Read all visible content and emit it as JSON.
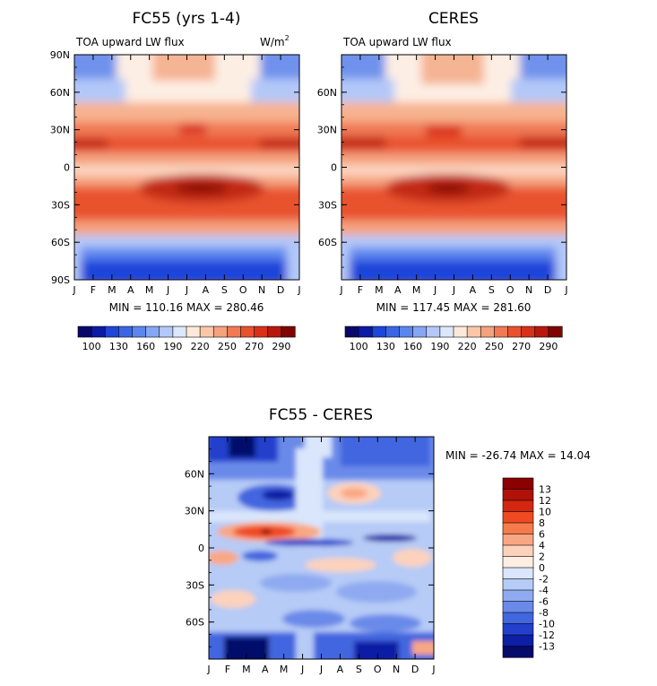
{
  "chart_data": [
    {
      "type": "heatmap",
      "title": "FC55 (yrs 1-4)",
      "subtitle": "TOA upward LW flux",
      "units_base": "W/m",
      "units_exp": "2",
      "x_labels": [
        "J",
        "F",
        "M",
        "A",
        "M",
        "J",
        "J",
        "A",
        "S",
        "O",
        "N",
        "D",
        "J"
      ],
      "y_labels": [
        "90N",
        "60N",
        "30N",
        "0",
        "30S",
        "60S",
        "90S"
      ],
      "y_values": [
        90,
        60,
        30,
        0,
        -30,
        -60,
        -90
      ],
      "stats": "MIN = 110.16 MAX = 280.46",
      "colorbar": {
        "ticks": [
          "100",
          "130",
          "160",
          "190",
          "220",
          "250",
          "270",
          "290"
        ],
        "levels": [
          100,
          130,
          160,
          190,
          220,
          250,
          270,
          290
        ],
        "colors": [
          "#08086b",
          "#0d1aa6",
          "#1f45d9",
          "#3a66e6",
          "#5b86ee",
          "#86a6f3",
          "#b3c8f8",
          "#dce7fb",
          "#fde9d9",
          "#f9c7a8",
          "#f5a27e",
          "#f07a55",
          "#e8522f",
          "#d9301a",
          "#b8170e",
          "#7e0504"
        ]
      }
    },
    {
      "type": "heatmap",
      "title": "CERES",
      "subtitle": "TOA upward LW flux",
      "x_labels": [
        "J",
        "F",
        "M",
        "A",
        "M",
        "J",
        "J",
        "A",
        "S",
        "O",
        "N",
        "D",
        "J"
      ],
      "y_labels": [
        "60N",
        "30N",
        "0",
        "30S",
        "60S"
      ],
      "y_values": [
        60,
        30,
        0,
        -30,
        -60
      ],
      "stats": "MIN = 117.45 MAX = 281.60",
      "colorbar": {
        "ticks": [
          "100",
          "130",
          "160",
          "190",
          "220",
          "250",
          "270",
          "290"
        ],
        "levels": [
          100,
          130,
          160,
          190,
          220,
          250,
          270,
          290
        ]
      }
    },
    {
      "type": "heatmap",
      "title": "FC55 - CERES",
      "x_labels": [
        "J",
        "F",
        "M",
        "A",
        "M",
        "J",
        "J",
        "A",
        "S",
        "O",
        "N",
        "D",
        "J"
      ],
      "y_labels": [
        "60N",
        "30N",
        "0",
        "30S",
        "60S"
      ],
      "y_values": [
        60,
        30,
        0,
        -30,
        -60
      ],
      "stats": "MIN = -26.74 MAX =  14.04",
      "colorbar": {
        "ticks": [
          "13",
          "12",
          "10",
          "8",
          "6",
          "4",
          "2",
          "0",
          "-2",
          "-4",
          "-6",
          "-8",
          "-10",
          "-12",
          "-13"
        ],
        "levels": [
          13,
          12,
          10,
          8,
          6,
          4,
          2,
          0,
          -2,
          -4,
          -6,
          -8,
          -10,
          -12,
          -13
        ],
        "colors": [
          "#8b0000",
          "#b01208",
          "#d3280f",
          "#ef4a22",
          "#f57b4b",
          "#f9a783",
          "#fcd2bc",
          "#fdeee4",
          "#d9e6fb",
          "#b6cbf6",
          "#8faaf0",
          "#6a8ae9",
          "#4266df",
          "#2240cc",
          "#0d1fa4",
          "#050a6b"
        ]
      }
    }
  ]
}
